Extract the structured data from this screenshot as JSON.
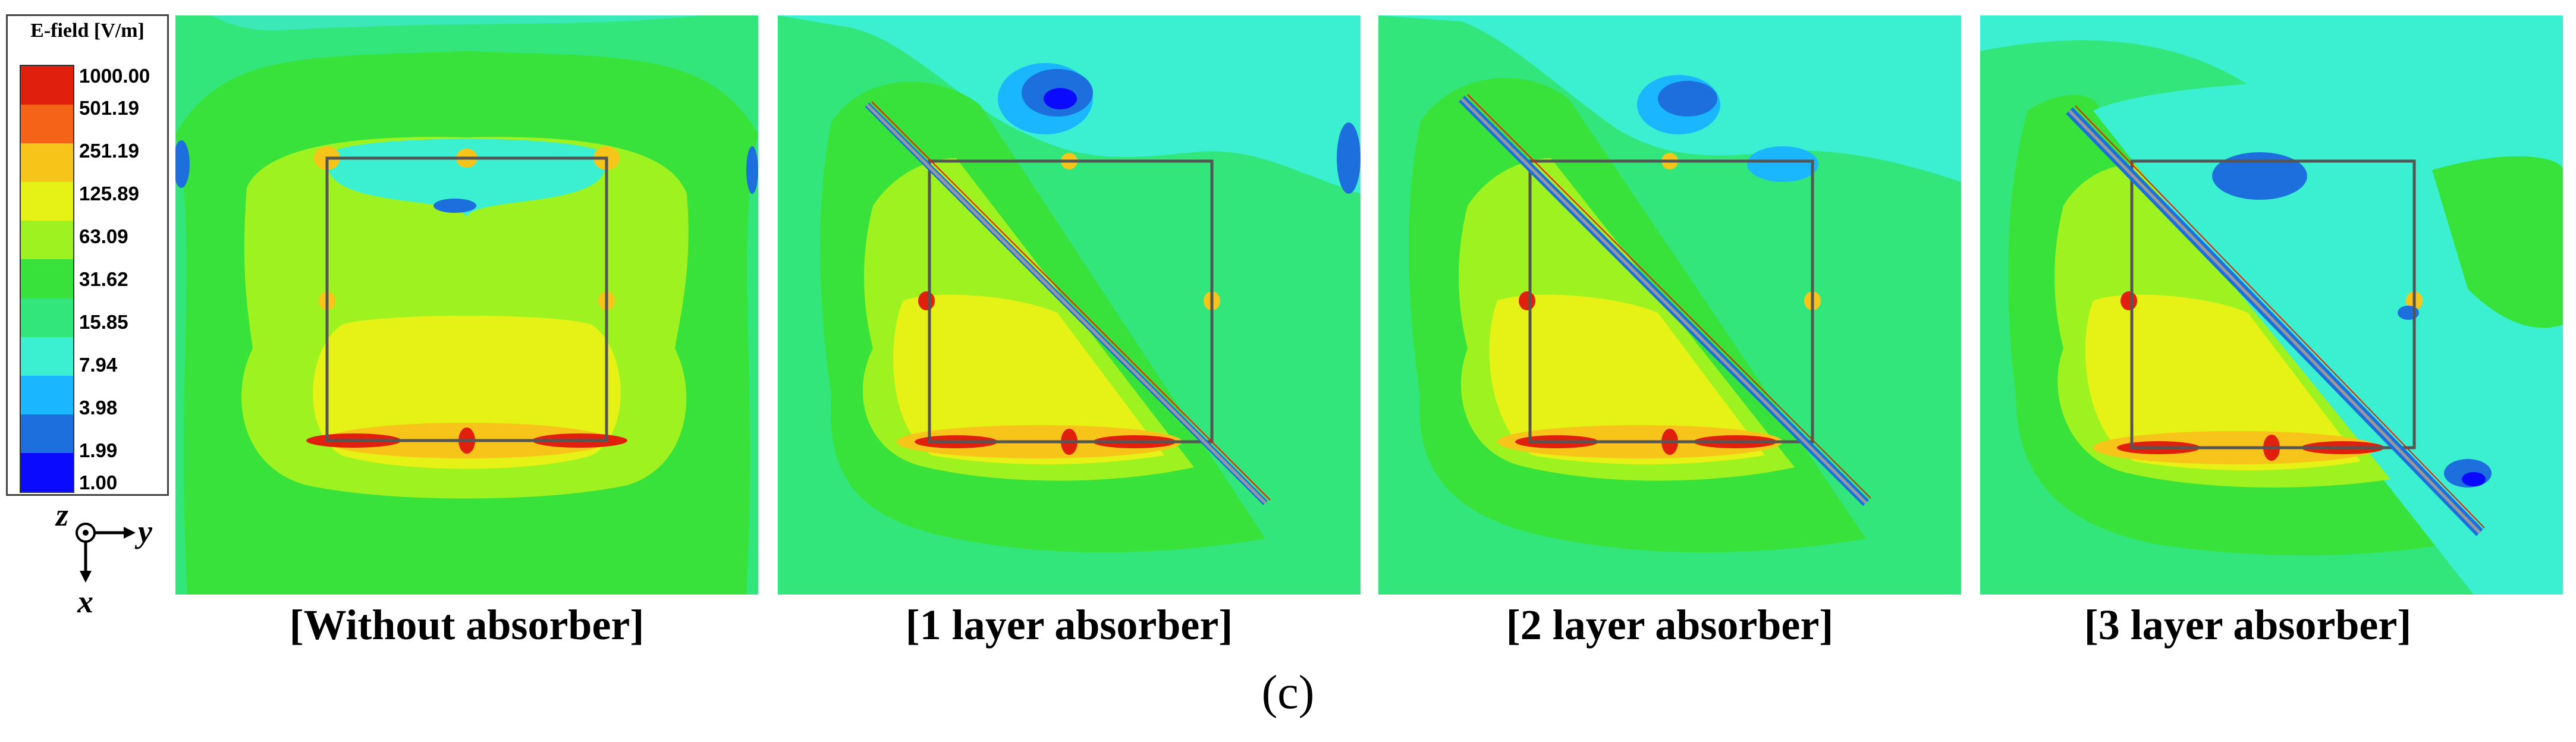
{
  "legend": {
    "title": "E-field [V/m]",
    "ticks": [
      "1000.00",
      "501.19",
      "251.19",
      "125.89",
      "63.09",
      "31.62",
      "15.85",
      "7.94",
      "3.98",
      "1.99",
      "1.00"
    ],
    "colors": [
      "#e0200d",
      "#f46318",
      "#f7c51a",
      "#e6f216",
      "#9ef21f",
      "#38e23a",
      "#33e67c",
      "#3af0d0",
      "#1ab6ff",
      "#1c6fdc",
      "#0a0aff"
    ]
  },
  "axes": {
    "z": "z",
    "y": "y",
    "x": "x"
  },
  "panels": [
    {
      "caption": "[Without absorber]",
      "absorber_layers": 0
    },
    {
      "caption": "[1 layer absorber]",
      "absorber_layers": 1
    },
    {
      "caption": "[2 layer absorber]",
      "absorber_layers": 2
    },
    {
      "caption": "[3 layer absorber]",
      "absorber_layers": 3
    }
  ],
  "subfigure_label": "(c)"
}
